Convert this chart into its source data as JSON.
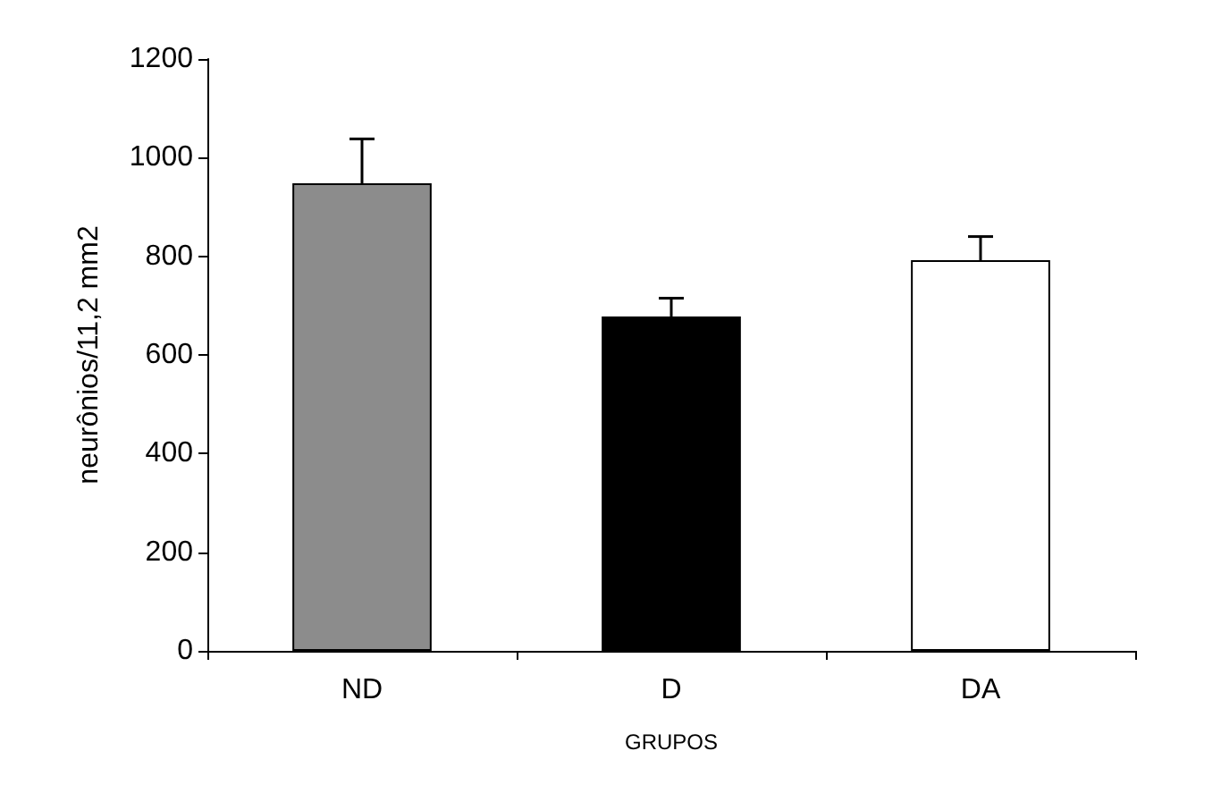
{
  "chart_data": {
    "type": "bar",
    "xlabel": "GRUPOS",
    "ylabel": "neurônios/11,2 mm2",
    "categories": [
      "ND",
      "D",
      "DA"
    ],
    "values": [
      948,
      678,
      792
    ],
    "colors": [
      "#8c8c8c",
      "#000000",
      "#ffffff"
    ],
    "errors": [
      [
        948,
        1038
      ],
      [
        678,
        715
      ],
      [
        792,
        840
      ]
    ],
    "ylim": [
      0,
      1200
    ],
    "yticks": [
      0,
      200,
      400,
      600,
      800,
      1000,
      1200
    ],
    "grid": false
  }
}
